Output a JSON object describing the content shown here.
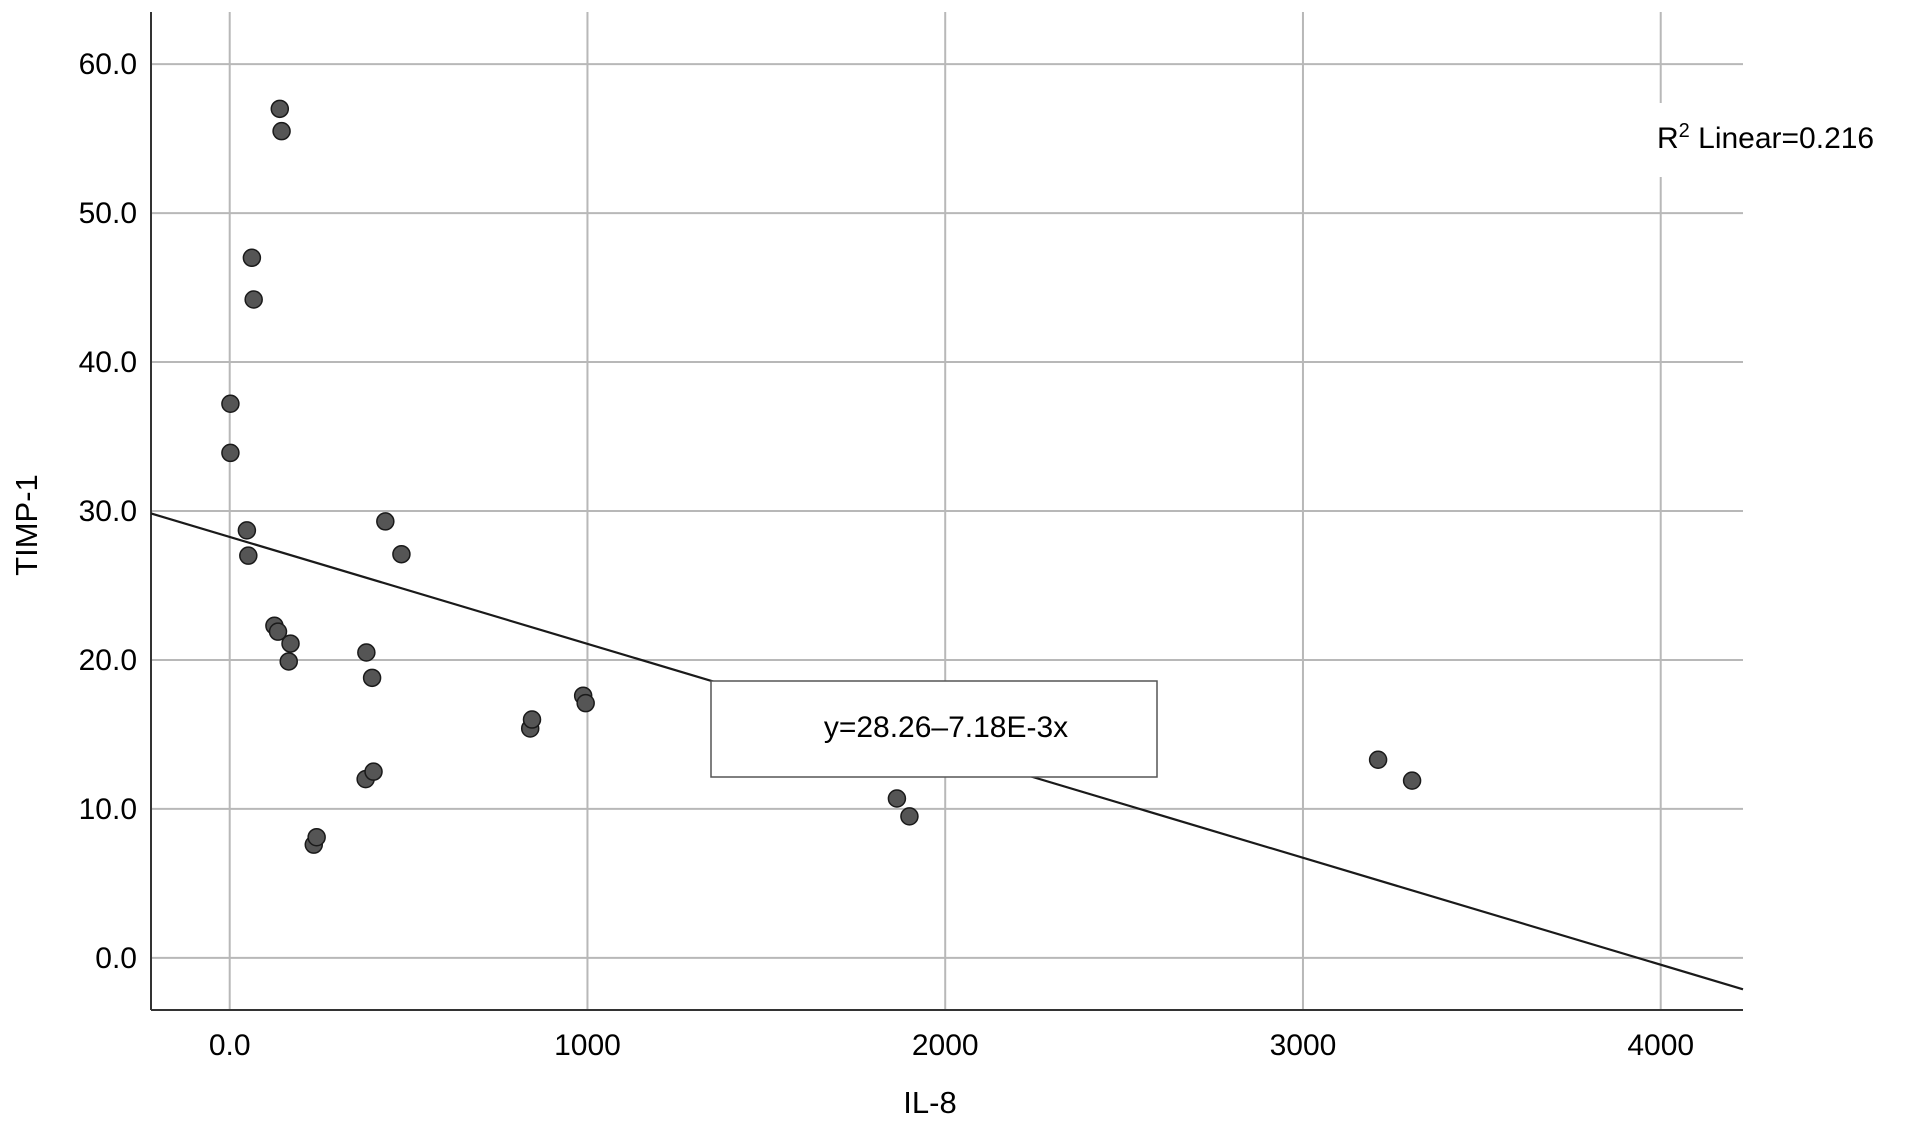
{
  "chart_data": {
    "type": "scatter",
    "xlabel": "IL-8",
    "ylabel": "TIMP-1",
    "xlim": [
      -220,
      4230
    ],
    "ylim": [
      -3.5,
      63.5
    ],
    "x_ticks": [
      0,
      1000,
      2000,
      3000,
      4000
    ],
    "x_tick_labels": [
      "0.0",
      "1000",
      "2000",
      "3000",
      "4000"
    ],
    "y_ticks": [
      0,
      10,
      20,
      30,
      40,
      50,
      60
    ],
    "y_tick_labels": [
      "0.0",
      "10.0",
      "20.0",
      "30.0",
      "40.0",
      "50.0",
      "60.0"
    ],
    "grid": true,
    "points": [
      {
        "x": 2,
        "y": 37.2
      },
      {
        "x": 2,
        "y": 33.9
      },
      {
        "x": 48,
        "y": 28.7
      },
      {
        "x": 52,
        "y": 27.0
      },
      {
        "x": 62,
        "y": 47.0
      },
      {
        "x": 67,
        "y": 44.2
      },
      {
        "x": 125,
        "y": 22.3
      },
      {
        "x": 135,
        "y": 21.9
      },
      {
        "x": 140,
        "y": 57.0
      },
      {
        "x": 145,
        "y": 55.5
      },
      {
        "x": 170,
        "y": 21.1
      },
      {
        "x": 165,
        "y": 19.9
      },
      {
        "x": 235,
        "y": 7.6
      },
      {
        "x": 243,
        "y": 8.1
      },
      {
        "x": 380,
        "y": 12.0
      },
      {
        "x": 382,
        "y": 20.5
      },
      {
        "x": 398,
        "y": 18.8
      },
      {
        "x": 402,
        "y": 12.5
      },
      {
        "x": 435,
        "y": 29.3
      },
      {
        "x": 480,
        "y": 27.1
      },
      {
        "x": 840,
        "y": 15.4
      },
      {
        "x": 845,
        "y": 16.0
      },
      {
        "x": 988,
        "y": 17.6
      },
      {
        "x": 995,
        "y": 17.1
      },
      {
        "x": 1865,
        "y": 10.7
      },
      {
        "x": 1900,
        "y": 9.5
      },
      {
        "x": 3210,
        "y": 13.3
      },
      {
        "x": 3305,
        "y": 11.9
      }
    ],
    "fit_line": {
      "intercept": 28.26,
      "slope": -0.00718
    },
    "equation_label": "y=28.26–7.18E-3x",
    "r2_label": {
      "prefix": "R",
      "superscript": "2",
      "text": " Linear=0.216"
    },
    "colors": {
      "points": "#555555",
      "point_edge": "#1a1a1a",
      "line": "#1a1a1a",
      "grid": "#b8b8b8",
      "axis": "#333333"
    }
  }
}
